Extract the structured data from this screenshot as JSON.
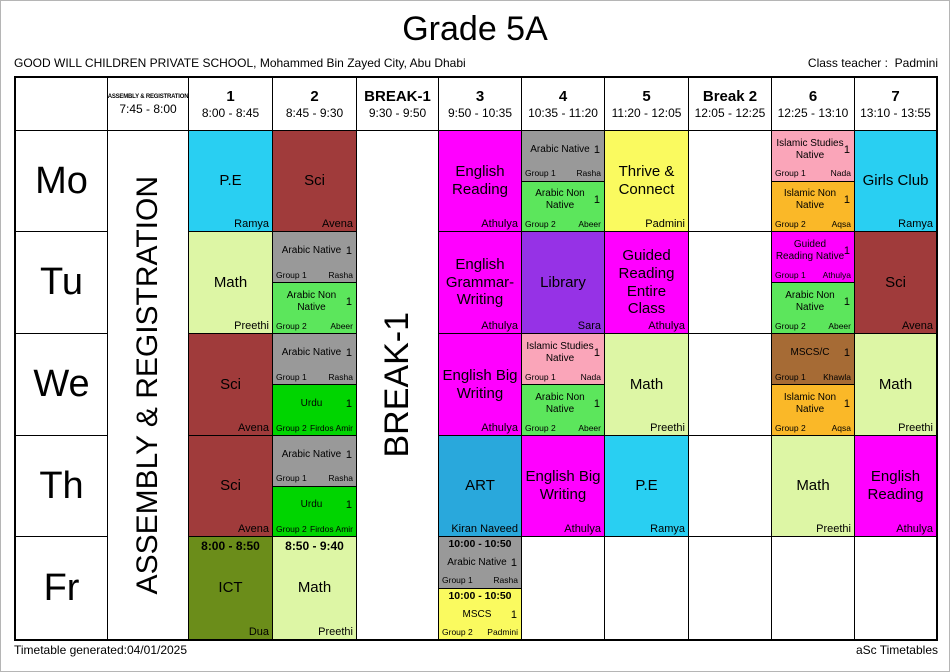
{
  "title": "Grade 5A",
  "school_line": "GOOD WILL CHILDREN PRIVATE SCHOOL, Mohammed Bin Zayed City, Abu Dhabi",
  "class_teacher": {
    "label": "Class teacher :",
    "name": "Padmini"
  },
  "footer": {
    "left": "Timetable generated:04/01/2025",
    "right": "aSc Timetables"
  },
  "merged": {
    "assembly": "ASSEMBLY & REGISTRATION",
    "break1": "BREAK-1"
  },
  "columns": [
    {
      "id": "assembly",
      "label": "ASSEMBLY & REGISTRATION",
      "time": "7:45 - 8:00",
      "style": "tiny"
    },
    {
      "id": "p1",
      "label": "1",
      "time": "8:00 - 8:45"
    },
    {
      "id": "p2",
      "label": "2",
      "time": "8:45 - 9:30"
    },
    {
      "id": "break1",
      "label": "BREAK-1",
      "time": "9:30 - 9:50"
    },
    {
      "id": "p3",
      "label": "3",
      "time": "9:50 - 10:35"
    },
    {
      "id": "p4",
      "label": "4",
      "time": "10:35 - 11:20"
    },
    {
      "id": "p5",
      "label": "5",
      "time": "11:20 - 12:05"
    },
    {
      "id": "break2",
      "label": "Break 2",
      "time": "12:05 - 12:25"
    },
    {
      "id": "p6",
      "label": "6",
      "time": "12:25 - 13:10"
    },
    {
      "id": "p7",
      "label": "7",
      "time": "13:10 - 13:55"
    }
  ],
  "body_columns": [
    "p1",
    "p2",
    "p3",
    "p4",
    "p5",
    "break2",
    "p6",
    "p7"
  ],
  "days": [
    {
      "id": "mo",
      "label": "Mo"
    },
    {
      "id": "tu",
      "label": "Tu"
    },
    {
      "id": "we",
      "label": "We"
    },
    {
      "id": "th",
      "label": "Th"
    },
    {
      "id": "fr",
      "label": "Fr"
    }
  ],
  "colors": {
    "cyan": "#29CFF2",
    "art_blue": "#29A8DC",
    "dark_red": "#A03B3B",
    "magenta": "#FF00FF",
    "gray": "#999999",
    "light_green": "#5CE65C",
    "urdu_green": "#00D500",
    "yellow": "#FAFA5F",
    "pink": "#FAA5B9",
    "amber": "#FAB828",
    "purple": "#9632E6",
    "math_green": "#DDF6A5",
    "olive": "#6B8D1A",
    "brown": "#A66B35"
  },
  "cells": {
    "mo": {
      "p1": {
        "kind": "single",
        "subject": "P.E",
        "teacher": "Ramya",
        "color": "cyan"
      },
      "p2": {
        "kind": "single",
        "subject": "Sci",
        "teacher": "Avena",
        "color": "dark_red"
      },
      "p3": {
        "kind": "single",
        "subject": "English Reading",
        "teacher": "Athulya",
        "color": "magenta"
      },
      "p4": {
        "kind": "split",
        "top": {
          "subject": "Arabic Native",
          "num": "1",
          "group": "Group 1",
          "teacher": "Rasha",
          "color": "gray"
        },
        "bottom": {
          "subject": "Arabic Non Native",
          "num": "1",
          "group": "Group 2",
          "teacher": "Abeer",
          "color": "light_green"
        }
      },
      "p5": {
        "kind": "single",
        "subject": "Thrive & Connect",
        "teacher": "Padmini",
        "color": "yellow"
      },
      "break2": null,
      "p6": {
        "kind": "split",
        "top": {
          "subject": "Islamic Studies Native",
          "num": "1",
          "group": "Group 1",
          "teacher": "Nada",
          "color": "pink"
        },
        "bottom": {
          "subject": "Islamic Non Native",
          "num": "1",
          "group": "Group 2",
          "teacher": "Aqsa",
          "color": "amber"
        }
      },
      "p7": {
        "kind": "single",
        "subject": "Girls Club",
        "teacher": "Ramya",
        "color": "cyan"
      }
    },
    "tu": {
      "p1": {
        "kind": "single",
        "subject": "Math",
        "teacher": "Preethi",
        "color": "math_green"
      },
      "p2": {
        "kind": "split",
        "top": {
          "subject": "Arabic Native",
          "num": "1",
          "group": "Group 1",
          "teacher": "Rasha",
          "color": "gray"
        },
        "bottom": {
          "subject": "Arabic Non Native",
          "num": "1",
          "group": "Group 2",
          "teacher": "Abeer",
          "color": "light_green"
        }
      },
      "p3": {
        "kind": "single",
        "subject": "English Grammar-Writing",
        "teacher": "Athulya",
        "color": "magenta"
      },
      "p4": {
        "kind": "single",
        "subject": "Library",
        "teacher": "Sara",
        "color": "purple"
      },
      "p5": {
        "kind": "single",
        "subject": "Guided Reading Entire Class",
        "teacher": "Athulya",
        "color": "magenta"
      },
      "break2": null,
      "p6": {
        "kind": "split",
        "top": {
          "subject": "Guided Reading Native",
          "num": "1",
          "group": "Group 1",
          "teacher": "Athulya",
          "color": "magenta"
        },
        "bottom": {
          "subject": "Arabic Non Native",
          "num": "1",
          "group": "Group 2",
          "teacher": "Abeer",
          "color": "light_green"
        }
      },
      "p7": {
        "kind": "single",
        "subject": "Sci",
        "teacher": "Avena",
        "color": "dark_red"
      }
    },
    "we": {
      "p1": {
        "kind": "single",
        "subject": "Sci",
        "teacher": "Avena",
        "color": "dark_red"
      },
      "p2": {
        "kind": "split",
        "top": {
          "subject": "Arabic Native",
          "num": "1",
          "group": "Group 1",
          "teacher": "Rasha",
          "color": "gray"
        },
        "bottom": {
          "subject": "Urdu",
          "num": "1",
          "group": "Group 2",
          "teacher": "Firdos Amir",
          "color": "urdu_green"
        }
      },
      "p3": {
        "kind": "single",
        "subject": "English Big Writing",
        "teacher": "Athulya",
        "color": "magenta"
      },
      "p4": {
        "kind": "split",
        "top": {
          "subject": "Islamic Studies Native",
          "num": "1",
          "group": "Group 1",
          "teacher": "Nada",
          "color": "pink"
        },
        "bottom": {
          "subject": "Arabic Non Native",
          "num": "1",
          "group": "Group 2",
          "teacher": "Abeer",
          "color": "light_green"
        }
      },
      "p5": {
        "kind": "single",
        "subject": "Math",
        "teacher": "Preethi",
        "color": "math_green"
      },
      "break2": null,
      "p6": {
        "kind": "split",
        "top": {
          "subject": "MSCS/C",
          "num": "1",
          "group": "Group 1",
          "teacher": "Khawla",
          "color": "brown"
        },
        "bottom": {
          "subject": "Islamic Non Native",
          "num": "1",
          "group": "Group 2",
          "teacher": "Aqsa",
          "color": "amber"
        }
      },
      "p7": {
        "kind": "single",
        "subject": "Math",
        "teacher": "Preethi",
        "color": "math_green"
      }
    },
    "th": {
      "p1": {
        "kind": "single",
        "subject": "Sci",
        "teacher": "Avena",
        "color": "dark_red"
      },
      "p2": {
        "kind": "split",
        "top": {
          "subject": "Arabic Native",
          "num": "1",
          "group": "Group 1",
          "teacher": "Rasha",
          "color": "gray"
        },
        "bottom": {
          "subject": "Urdu",
          "num": "1",
          "group": "Group 2",
          "teacher": "Firdos Amir",
          "color": "urdu_green"
        }
      },
      "p3": {
        "kind": "single",
        "subject": "ART",
        "teacher": "Kiran Naveed",
        "color": "art_blue"
      },
      "p4": {
        "kind": "single",
        "subject": "English Big Writing",
        "teacher": "Athulya",
        "color": "magenta"
      },
      "p5": {
        "kind": "single",
        "subject": "P.E",
        "teacher": "Ramya",
        "color": "cyan"
      },
      "break2": null,
      "p6": {
        "kind": "single",
        "subject": "Math",
        "teacher": "Preethi",
        "color": "math_green"
      },
      "p7": {
        "kind": "single",
        "subject": "English Reading",
        "teacher": "Athulya",
        "color": "magenta"
      }
    },
    "fr": {
      "p1": {
        "kind": "single",
        "time": "8:00 - 8:50",
        "subject": "ICT",
        "teacher": "Dua",
        "color": "olive"
      },
      "p2": {
        "kind": "single",
        "time": "8:50 - 9:40",
        "subject": "Math",
        "teacher": "Preethi",
        "color": "math_green"
      },
      "p3": {
        "kind": "split",
        "top": {
          "time": "10:00 - 10:50",
          "subject": "Arabic Native",
          "num": "1",
          "group": "Group 1",
          "teacher": "Rasha",
          "color": "gray"
        },
        "bottom": {
          "time": "10:00 - 10:50",
          "subject": "MSCS",
          "num": "1",
          "group": "Group 2",
          "teacher": "Padmini",
          "color": "yellow"
        }
      },
      "p4": null,
      "p5": null,
      "break2": null,
      "p6": null,
      "p7": null
    }
  }
}
